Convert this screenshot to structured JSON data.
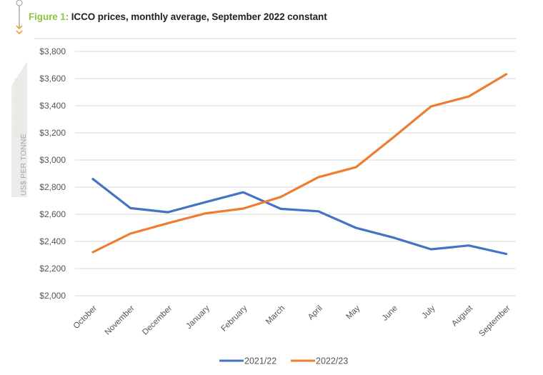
{
  "header": {
    "figure_label": "Figure 1:",
    "title": "ICCO prices, monthly average, September 2022 constant"
  },
  "colors": {
    "series_2021_22": "#4472c4",
    "series_2022_23": "#ed7d31",
    "figure_label": "#8dc63f",
    "grid": "#d9d9d9"
  },
  "chart_data": {
    "type": "line",
    "title": "ICCO prices, monthly average, September 2022 constant",
    "xlabel": "",
    "ylabel": "US$ PER TONNE",
    "ylim": [
      2000,
      3800
    ],
    "yticks": [
      2000,
      2200,
      2400,
      2600,
      2800,
      3000,
      3200,
      3400,
      3600,
      3800
    ],
    "ytick_labels": [
      "$2,000",
      "$2,200",
      "$2,400",
      "$2,600",
      "$2,800",
      "$3,000",
      "$3,200",
      "$3,400",
      "$3,600",
      "$3,800"
    ],
    "grid": true,
    "legend_position": "bottom-center",
    "categories": [
      "October",
      "November",
      "December",
      "January",
      "February",
      "March",
      "April",
      "May",
      "June",
      "July",
      "August",
      "September"
    ],
    "series": [
      {
        "name": "2021/22",
        "color": "#4472c4",
        "values": [
          2860,
          2645,
          2615,
          2690,
          2762,
          2640,
          2622,
          2500,
          2428,
          2342,
          2370,
          2308
        ]
      },
      {
        "name": "2022/23",
        "color": "#ed7d31",
        "values": [
          2321,
          2458,
          2535,
          2607,
          2642,
          2728,
          2873,
          2947,
          3168,
          3395,
          3468,
          3632
        ]
      }
    ]
  }
}
